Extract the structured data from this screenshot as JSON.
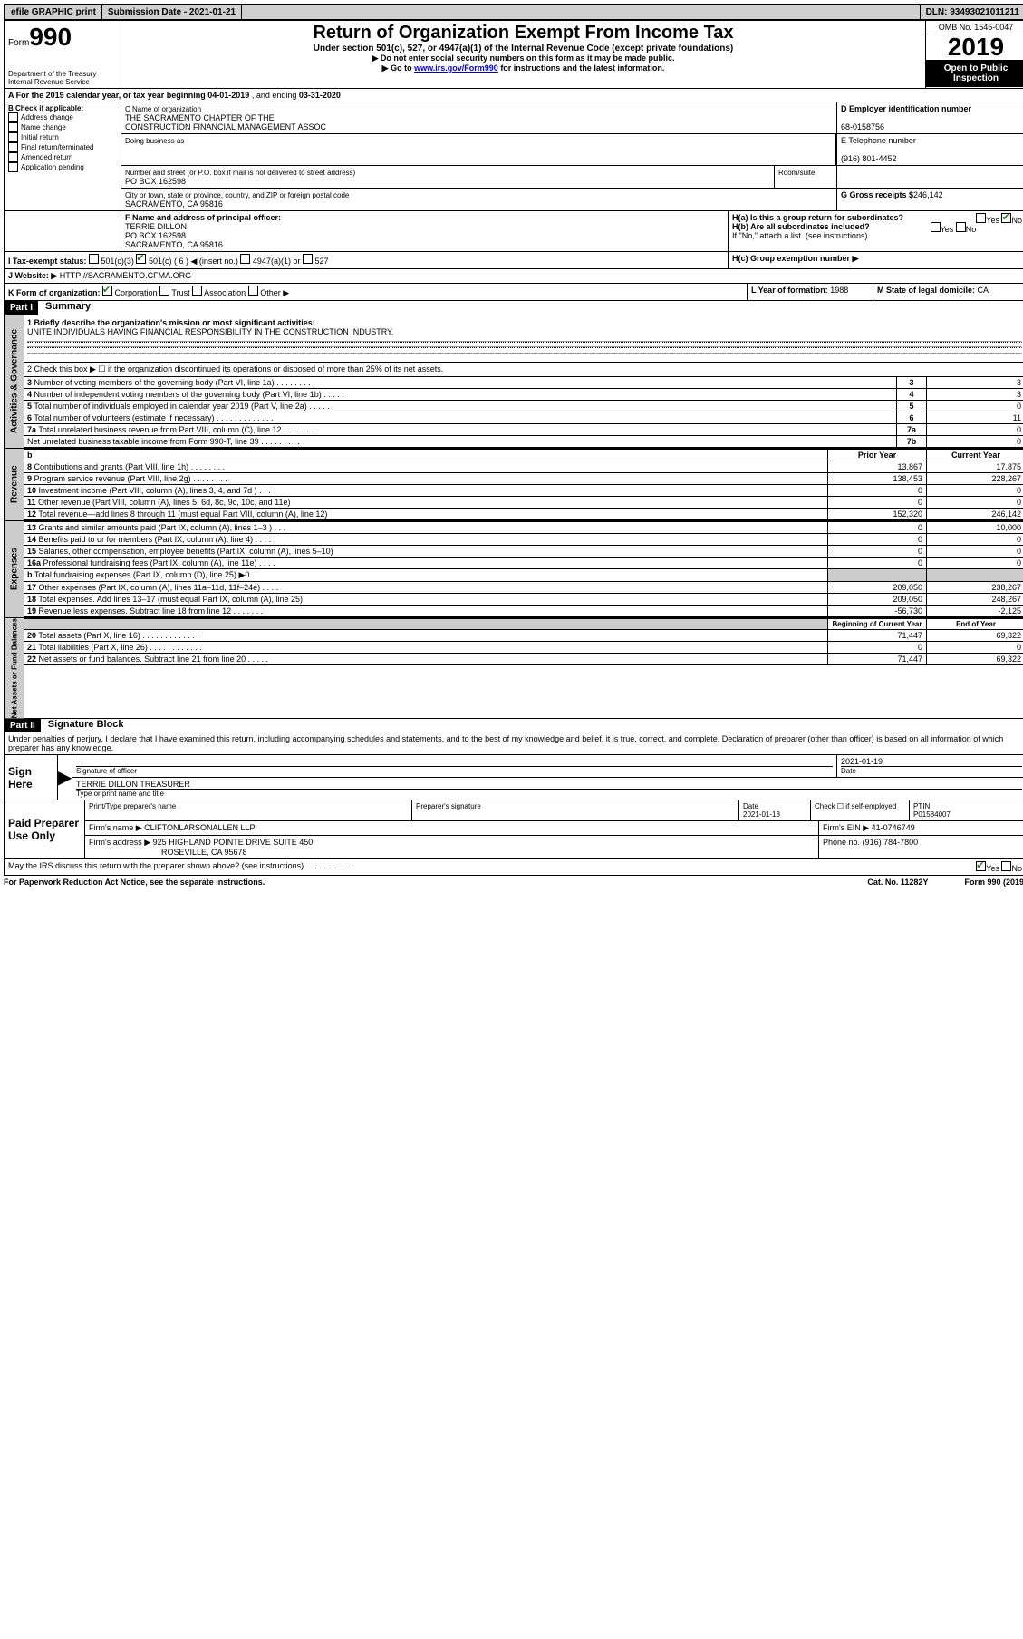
{
  "top_bar": {
    "efile": "efile GRAPHIC print",
    "submission_date_label": "Submission Date - 2021-01-21",
    "dln": "DLN: 93493021011211"
  },
  "header": {
    "form_prefix": "Form",
    "form_number": "990",
    "dept": "Department of the Treasury",
    "irs": "Internal Revenue Service",
    "title": "Return of Organization Exempt From Income Tax",
    "sub": "Under section 501(c), 527, or 4947(a)(1) of the Internal Revenue Code (except private foundations)",
    "ssn_note": "▶ Do not enter social security numbers on this form as it may be made public.",
    "goto": "▶ Go to",
    "goto_link": "www.irs.gov/Form990",
    "goto_suffix": "for instructions and the latest information.",
    "omb": "OMB No. 1545-0047",
    "year": "2019",
    "open": "Open to Public Inspection"
  },
  "period": {
    "a_label": "A For the 2019 calendar year, or tax year beginning",
    "begin": "04-01-2019",
    "ending_label": ", and ending",
    "end": "03-31-2020"
  },
  "boxB": {
    "label": "B Check if applicable:",
    "opts": [
      "Address change",
      "Name change",
      "Initial return",
      "Final return/terminated",
      "Amended return",
      "Application pending"
    ]
  },
  "boxC": {
    "name_label": "C Name of organization",
    "name1": "THE SACRAMENTO CHAPTER OF THE",
    "name2": "CONSTRUCTION FINANCIAL MANAGEMENT ASSOC",
    "dba": "Doing business as",
    "street_label": "Number and street (or P.O. box if mail is not delivered to street address)",
    "room": "Room/suite",
    "street": "PO BOX 162598",
    "city_label": "City or town, state or province, country, and ZIP or foreign postal code",
    "city": "SACRAMENTO, CA  95816"
  },
  "boxD": {
    "label": "D Employer identification number",
    "ein": "68-0158756"
  },
  "boxE": {
    "label": "E Telephone number",
    "phone": "(916) 801-4452"
  },
  "boxG": {
    "label": "G Gross receipts $",
    "amount": "246,142"
  },
  "boxF": {
    "label": "F Name and address of principal officer:",
    "name": "TERRIE DILLON",
    "addr1": "PO BOX 162598",
    "addr2": "SACRAMENTO, CA  95816"
  },
  "boxH": {
    "a": "H(a)  Is this a group return for subordinates?",
    "b": "H(b)  Are all subordinates included?",
    "note": "If \"No,\" attach a list. (see instructions)",
    "c": "H(c)  Group exemption number ▶"
  },
  "boxI": {
    "label": "I  Tax-exempt status:",
    "opts": [
      "501(c)(3)",
      "501(c) ( 6 ) ◀ (insert no.)",
      "4947(a)(1) or",
      "527"
    ]
  },
  "boxJ": {
    "label": "J  Website: ▶",
    "url": "HTTP://SACRAMENTO.CFMA.ORG"
  },
  "boxK": {
    "label": "K Form of organization:",
    "opts": [
      "Corporation",
      "Trust",
      "Association",
      "Other ▶"
    ]
  },
  "boxL": {
    "label": "L Year of formation:",
    "year": "1988"
  },
  "boxM": {
    "label": "M State of legal domicile:",
    "state": "CA"
  },
  "part1": {
    "header": "Part I",
    "title": "Summary"
  },
  "governance": {
    "label": "Activities & Governance",
    "line1": "1  Briefly describe the organization's mission or most significant activities:",
    "mission": "UNITE INDIVIDUALS HAVING FINANCIAL RESPONSIBILITY IN THE CONSTRUCTION INDUSTRY.",
    "line2": "2  Check this box ▶ ☐  if the organization discontinued its operations or disposed of more than 25% of its net assets.",
    "rows": [
      {
        "n": "3",
        "txt": "Number of voting members of the governing body (Part VI, line 1a)  .    .    .    .    .    .    .    .    .",
        "box": "3",
        "val": "3"
      },
      {
        "n": "4",
        "txt": "Number of independent voting members of the governing body (Part VI, line 1b)  .    .    .    .    .",
        "box": "4",
        "val": "3"
      },
      {
        "n": "5",
        "txt": "Total number of individuals employed in calendar year 2019 (Part V, line 2a)  .    .    .    .    .    .",
        "box": "5",
        "val": "0"
      },
      {
        "n": "6",
        "txt": "Total number of volunteers (estimate if necessary)  .    .    .    .    .    .    .    .    .    .    .    .    .",
        "box": "6",
        "val": "11"
      },
      {
        "n": "7a",
        "txt": "Total unrelated business revenue from Part VIII, column (C), line 12  .    .    .    .    .    .    .    .",
        "box": "7a",
        "val": "0"
      },
      {
        "n": "",
        "txt": "Net unrelated business taxable income from Form 990-T, line 39  .    .    .    .    .    .    .    .    .",
        "box": "7b",
        "val": "0"
      }
    ]
  },
  "revenue": {
    "label": "Revenue",
    "header_prior": "Prior Year",
    "header_current": "Current Year",
    "rows": [
      {
        "n": "8",
        "txt": "Contributions and grants (Part VIII, line 1h)  .    .    .    .    .    .    .    .",
        "prior": "13,867",
        "curr": "17,875"
      },
      {
        "n": "9",
        "txt": "Program service revenue (Part VIII, line 2g)  .    .    .    .    .    .    .    .",
        "prior": "138,453",
        "curr": "228,267"
      },
      {
        "n": "10",
        "txt": "Investment income (Part VIII, column (A), lines 3, 4, and 7d )  .    .    .",
        "prior": "0",
        "curr": "0"
      },
      {
        "n": "11",
        "txt": "Other revenue (Part VIII, column (A), lines 5, 6d, 8c, 9c, 10c, and 11e)",
        "prior": "0",
        "curr": "0"
      },
      {
        "n": "12",
        "txt": "Total revenue—add lines 8 through 11 (must equal Part VIII, column (A), line 12)",
        "prior": "152,320",
        "curr": "246,142"
      }
    ]
  },
  "expenses": {
    "label": "Expenses",
    "rows": [
      {
        "n": "13",
        "txt": "Grants and similar amounts paid (Part IX, column (A), lines 1–3 )  .    .    .",
        "prior": "0",
        "curr": "10,000"
      },
      {
        "n": "14",
        "txt": "Benefits paid to or for members (Part IX, column (A), line 4)  .    .    .    .",
        "prior": "0",
        "curr": "0"
      },
      {
        "n": "15",
        "txt": "Salaries, other compensation, employee benefits (Part IX, column (A), lines 5–10)",
        "prior": "0",
        "curr": "0"
      },
      {
        "n": "16a",
        "txt": "Professional fundraising fees (Part IX, column (A), line 11e)  .    .    .    .",
        "prior": "0",
        "curr": "0"
      },
      {
        "n": "b",
        "txt": "Total fundraising expenses (Part IX, column (D), line 25) ▶0",
        "prior": "",
        "curr": "",
        "grey": true
      },
      {
        "n": "17",
        "txt": "Other expenses (Part IX, column (A), lines 11a–11d, 11f–24e)  .    .    .    .",
        "prior": "209,050",
        "curr": "238,267"
      },
      {
        "n": "18",
        "txt": "Total expenses. Add lines 13–17 (must equal Part IX, column (A), line 25)",
        "prior": "209,050",
        "curr": "248,267"
      },
      {
        "n": "19",
        "txt": "Revenue less expenses. Subtract line 18 from line 12  .    .    .    .    .    .    .",
        "prior": "-56,730",
        "curr": "-2,125"
      }
    ]
  },
  "netassets": {
    "label": "Net Assets or Fund Balances",
    "header_begin": "Beginning of Current Year",
    "header_end": "End of Year",
    "rows": [
      {
        "n": "20",
        "txt": "Total assets (Part X, line 16)  .    .    .    .    .    .    .    .    .    .    .    .    .",
        "prior": "71,447",
        "curr": "69,322"
      },
      {
        "n": "21",
        "txt": "Total liabilities (Part X, line 26)  .    .    .    .    .    .    .    .    .    .    .    .",
        "prior": "0",
        "curr": "0"
      },
      {
        "n": "22",
        "txt": "Net assets or fund balances. Subtract line 21 from line 20  .    .    .    .    .",
        "prior": "71,447",
        "curr": "69,322"
      }
    ]
  },
  "part2": {
    "header": "Part II",
    "title": "Signature Block",
    "declaration": "Under penalties of perjury, I declare that I have examined this return, including accompanying schedules and statements, and to the best of my knowledge and belief, it is true, correct, and complete. Declaration of preparer (other than officer) is based on all information of which preparer has any knowledge."
  },
  "sign_here": {
    "label": "Sign Here",
    "sig_label": "Signature of officer",
    "date": "2021-01-19",
    "date_label": "Date",
    "name": "TERRIE DILLON  TREASURER",
    "name_label": "Type or print name and title"
  },
  "paid_preparer": {
    "label": "Paid Preparer Use Only",
    "print_name_label": "Print/Type preparer's name",
    "sig_label": "Preparer's signature",
    "date_label": "Date",
    "date": "2021-01-18",
    "check_label": "Check ☐ if self-employed",
    "ptin_label": "PTIN",
    "ptin": "P01584007",
    "firm_name_label": "Firm's name    ▶",
    "firm_name": "CLIFTONLARSONALLEN LLP",
    "firm_ein_label": "Firm's EIN ▶",
    "firm_ein": "41-0746749",
    "firm_addr_label": "Firm's address ▶",
    "firm_addr1": "925 HIGHLAND POINTE DRIVE SUITE 450",
    "firm_addr2": "ROSEVILLE, CA  95678",
    "phone_label": "Phone no.",
    "phone": "(916) 784-7800"
  },
  "discuss": "May the IRS discuss this return with the preparer shown above? (see instructions)  .    .    .    .    .    .    .    .    .    .    .",
  "footer": {
    "pra": "For Paperwork Reduction Act Notice, see the separate instructions.",
    "cat": "Cat. No. 11282Y",
    "form": "Form 990 (2019)"
  }
}
